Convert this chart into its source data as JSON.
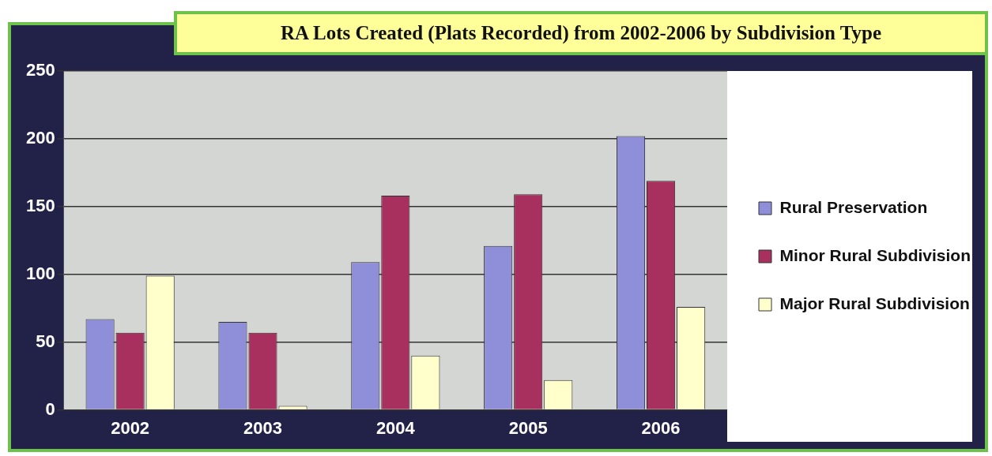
{
  "chart_data": {
    "type": "bar",
    "title": "RA Lots Created (Plats Recorded) from 2002-2006 by Subdivision Type",
    "categories": [
      "2002",
      "2003",
      "2004",
      "2005",
      "2006"
    ],
    "series": [
      {
        "name": "Rural Preservation",
        "color": "#8e8fd8",
        "values": [
          67,
          65,
          109,
          121,
          202
        ]
      },
      {
        "name": "Minor Rural Subdivision",
        "color": "#a8305f",
        "values": [
          57,
          57,
          158,
          159,
          169
        ]
      },
      {
        "name": "Major Rural Subdivision",
        "color": "#ffffcc",
        "values": [
          99,
          3,
          40,
          22,
          76
        ]
      }
    ],
    "ylim": [
      0,
      250
    ],
    "yticks": [
      0,
      50,
      100,
      150,
      200,
      250
    ],
    "grid": "y",
    "legend": "right"
  }
}
